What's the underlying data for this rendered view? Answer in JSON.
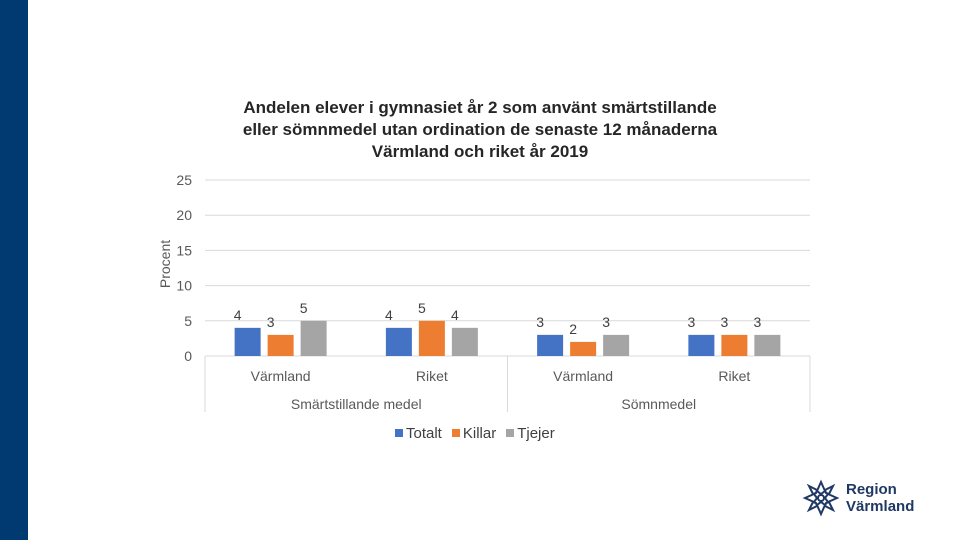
{
  "colors": {
    "totalt": "#4472c4",
    "killar": "#ed7d31",
    "tjejer": "#a5a5a5",
    "brand": "#003a70"
  },
  "chart_data": {
    "type": "bar",
    "title_lines": [
      "Andelen elever i gymnasiet år 2 som använt smärtstillande",
      "eller sömnmedel utan ordination de senaste 12 månaderna",
      "Värmland och riket år 2019"
    ],
    "ylabel": "Procent",
    "ylim": [
      0,
      25
    ],
    "yticks": [
      0,
      5,
      10,
      15,
      20,
      25
    ],
    "grid": true,
    "legend_position": "bottom",
    "categories": [
      "Värmland",
      "Riket",
      "Värmland",
      "Riket"
    ],
    "groups": [
      {
        "label": "Smärtstillande medel",
        "categories": [
          "Värmland",
          "Riket"
        ]
      },
      {
        "label": "Sömnmedel",
        "categories": [
          "Värmland",
          "Riket"
        ]
      }
    ],
    "series": [
      {
        "name": "Totalt",
        "values": [
          4,
          4,
          3,
          3
        ]
      },
      {
        "name": "Killar",
        "values": [
          3,
          5,
          2,
          3
        ]
      },
      {
        "name": "Tjejer",
        "values": [
          5,
          4,
          3,
          3
        ]
      }
    ]
  },
  "logo": {
    "line1": "Region",
    "line2": "Värmland"
  }
}
